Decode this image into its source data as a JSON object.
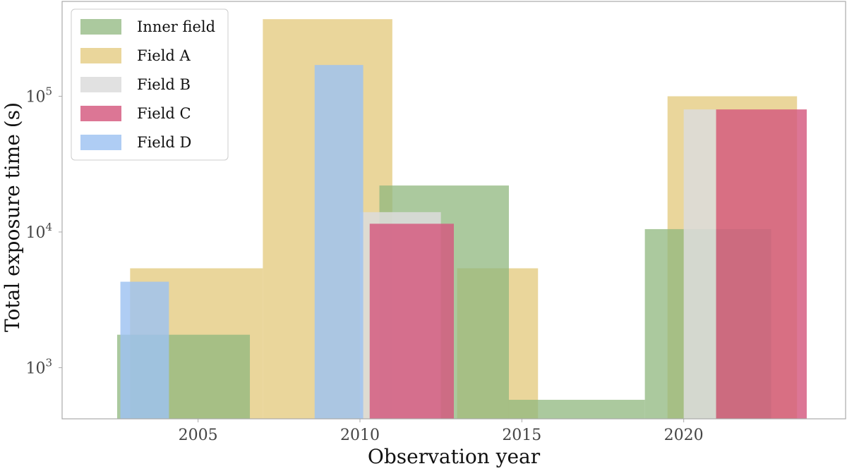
{
  "chart_data": {
    "type": "bar",
    "xlabel": "Observation year",
    "ylabel": "Total exposure time (s)",
    "xlim": [
      2000.8,
      2025.0
    ],
    "ylim": [
      420,
      500000
    ],
    "yscale": "log",
    "grid": false,
    "legend_placement": "top-left",
    "x_ticks": [
      {
        "value": 2005,
        "label": "2005"
      },
      {
        "value": 2010,
        "label": "2010"
      },
      {
        "value": 2015,
        "label": "2015"
      },
      {
        "value": 2020,
        "label": "2020"
      }
    ],
    "y_ticks": [
      {
        "value": 1000,
        "base": "10",
        "exp": "3"
      },
      {
        "value": 10000,
        "base": "10",
        "exp": "4"
      },
      {
        "value": 100000,
        "base": "10",
        "exp": "5"
      }
    ],
    "series": [
      {
        "name": "Field A",
        "color": "#e6cf8a",
        "opacity": 0.85,
        "bars": [
          {
            "x0": 2002.9,
            "x1": 2007.0,
            "value": 5400
          },
          {
            "x0": 2007.0,
            "x1": 2011.0,
            "value": 370000
          },
          {
            "x0": 2013.0,
            "x1": 2015.5,
            "value": 5400
          },
          {
            "x0": 2019.5,
            "x1": 2023.5,
            "value": 100000
          }
        ]
      },
      {
        "name": "Inner field",
        "color": "#8fb77e",
        "opacity": 0.75,
        "bars": [
          {
            "x0": 2002.5,
            "x1": 2006.6,
            "value": 1750
          },
          {
            "x0": 2010.6,
            "x1": 2014.6,
            "value": 22000
          },
          {
            "x0": 2014.6,
            "x1": 2018.8,
            "value": 580
          },
          {
            "x0": 2018.8,
            "x1": 2022.7,
            "value": 10500
          }
        ]
      },
      {
        "name": "Field B",
        "color": "#dcdcdc",
        "opacity": 0.85,
        "bars": [
          {
            "x0": 2010.0,
            "x1": 2012.5,
            "value": 14000
          },
          {
            "x0": 2020.0,
            "x1": 2021.0,
            "value": 80000
          }
        ]
      },
      {
        "name": "Field C",
        "color": "#d4587e",
        "opacity": 0.82,
        "bars": [
          {
            "x0": 2010.3,
            "x1": 2012.9,
            "value": 11500
          },
          {
            "x0": 2021.0,
            "x1": 2023.8,
            "value": 80000
          }
        ]
      },
      {
        "name": "Field D",
        "color": "#9ec2f2",
        "opacity": 0.82,
        "bars": [
          {
            "x0": 2002.6,
            "x1": 2004.1,
            "value": 4300
          },
          {
            "x0": 2008.6,
            "x1": 2010.1,
            "value": 170000
          }
        ]
      }
    ],
    "legend_order": [
      "Inner field",
      "Field A",
      "Field B",
      "Field C",
      "Field D"
    ]
  }
}
